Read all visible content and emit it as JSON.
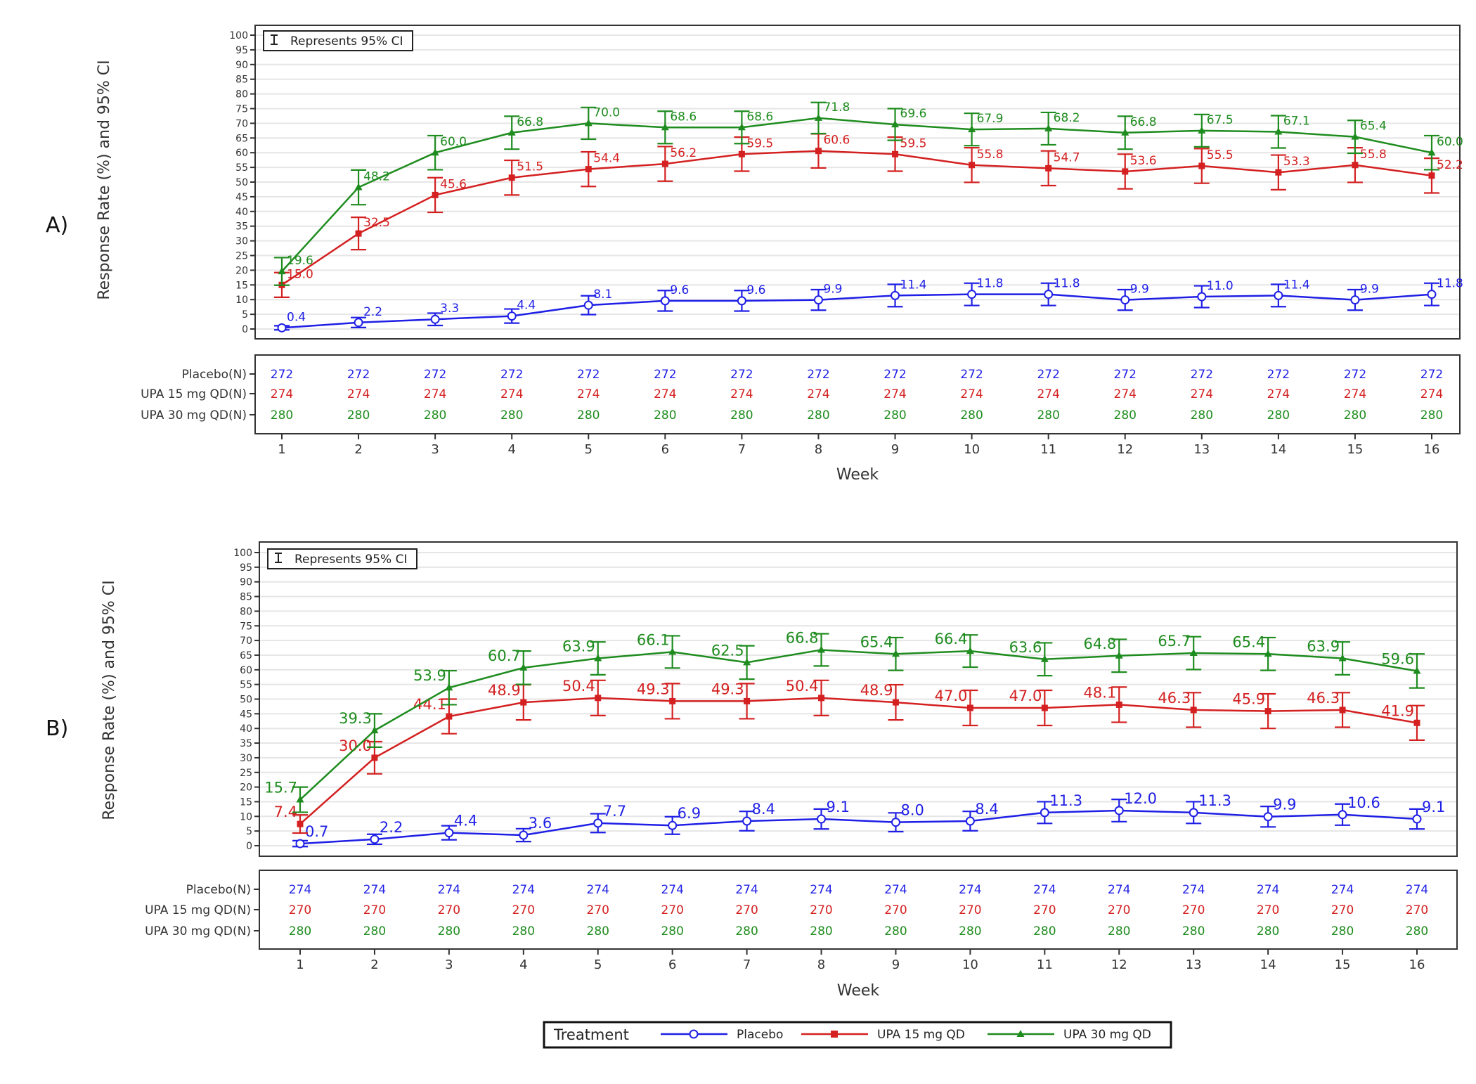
{
  "colors": {
    "Placebo": "#1f1fe6",
    "UPA 15 mg QD": "#d42020",
    "UPA 30 mg QD": "#1e8c1e",
    "axis": "#333333",
    "grid": "#e6e6e6"
  },
  "ci_note": "Represents 95% CI",
  "legend": {
    "title": "Treatment",
    "position": "bottom",
    "items": [
      "Placebo",
      "UPA 15 mg QD",
      "UPA 30 mg QD"
    ]
  },
  "chart_data": [
    {
      "panel": "A)",
      "type": "line",
      "ylabel": "Response Rate (%) and 95% CI",
      "xlabel": "Week",
      "ylim": [
        0,
        100
      ],
      "yticks": [
        0,
        5,
        10,
        15,
        20,
        25,
        30,
        35,
        40,
        45,
        50,
        55,
        60,
        65,
        70,
        75,
        80,
        85,
        90,
        95,
        100
      ],
      "grid": true,
      "x": [
        1,
        2,
        3,
        4,
        5,
        6,
        7,
        8,
        9,
        10,
        11,
        12,
        13,
        14,
        15,
        16
      ],
      "series": [
        {
          "name": "Placebo",
          "marker": "circle",
          "values": [
            0.4,
            2.2,
            3.3,
            4.4,
            8.1,
            9.6,
            9.6,
            9.9,
            11.4,
            11.8,
            11.8,
            9.9,
            11.0,
            11.4,
            9.9,
            11.8
          ],
          "ci_halfwidth": [
            0.7,
            1.7,
            2.1,
            2.4,
            3.2,
            3.5,
            3.5,
            3.5,
            3.8,
            3.8,
            3.8,
            3.5,
            3.7,
            3.8,
            3.5,
            3.8
          ],
          "n_label": "Placebo(N)",
          "n": [
            272,
            272,
            272,
            272,
            272,
            272,
            272,
            272,
            272,
            272,
            272,
            272,
            272,
            272,
            272,
            272
          ]
        },
        {
          "name": "UPA 15 mg QD",
          "marker": "square",
          "values": [
            15.0,
            32.5,
            45.6,
            51.5,
            54.4,
            56.2,
            59.5,
            60.6,
            59.5,
            55.8,
            54.7,
            53.6,
            55.5,
            53.3,
            55.8,
            52.2
          ],
          "ci_halfwidth": [
            4.2,
            5.5,
            5.9,
            5.9,
            5.9,
            5.9,
            5.8,
            5.8,
            5.8,
            5.9,
            5.9,
            5.9,
            5.9,
            5.9,
            5.9,
            5.9
          ],
          "n_label": "UPA 15 mg QD(N)",
          "n": [
            274,
            274,
            274,
            274,
            274,
            274,
            274,
            274,
            274,
            274,
            274,
            274,
            274,
            274,
            274,
            274
          ]
        },
        {
          "name": "UPA 30 mg QD",
          "marker": "triangle",
          "values": [
            19.6,
            48.2,
            60.0,
            66.8,
            70.0,
            68.6,
            68.6,
            71.8,
            69.6,
            67.9,
            68.2,
            66.8,
            67.5,
            67.1,
            65.4,
            60.0
          ],
          "ci_halfwidth": [
            4.7,
            5.9,
            5.8,
            5.6,
            5.4,
            5.5,
            5.5,
            5.3,
            5.4,
            5.5,
            5.5,
            5.6,
            5.5,
            5.5,
            5.6,
            5.8
          ],
          "n_label": "UPA 30 mg QD(N)",
          "n": [
            280,
            280,
            280,
            280,
            280,
            280,
            280,
            280,
            280,
            280,
            280,
            280,
            280,
            280,
            280,
            280
          ]
        }
      ]
    },
    {
      "panel": "B)",
      "type": "line",
      "ylabel": "Response Rate (%) and 95% CI",
      "xlabel": "Week",
      "ylim": [
        0,
        100
      ],
      "yticks": [
        0,
        5,
        10,
        15,
        20,
        25,
        30,
        35,
        40,
        45,
        50,
        55,
        60,
        65,
        70,
        75,
        80,
        85,
        90,
        95,
        100
      ],
      "grid": true,
      "x": [
        1,
        2,
        3,
        4,
        5,
        6,
        7,
        8,
        9,
        10,
        11,
        12,
        13,
        14,
        15,
        16
      ],
      "series": [
        {
          "name": "Placebo",
          "marker": "circle",
          "values": [
            0.7,
            2.2,
            4.4,
            3.6,
            7.7,
            6.9,
            8.4,
            9.1,
            8.0,
            8.4,
            11.3,
            12.0,
            11.3,
            9.9,
            10.6,
            9.1
          ],
          "ci_halfwidth": [
            1.0,
            1.7,
            2.4,
            2.2,
            3.2,
            3.0,
            3.3,
            3.4,
            3.2,
            3.3,
            3.7,
            3.8,
            3.7,
            3.5,
            3.6,
            3.4
          ],
          "n_label": "Placebo(N)",
          "n": [
            274,
            274,
            274,
            274,
            274,
            274,
            274,
            274,
            274,
            274,
            274,
            274,
            274,
            274,
            274,
            274
          ]
        },
        {
          "name": "UPA 15 mg QD",
          "marker": "square",
          "values": [
            7.4,
            30.0,
            44.1,
            48.9,
            50.4,
            49.3,
            49.3,
            50.4,
            48.9,
            47.0,
            47.0,
            48.1,
            46.3,
            45.9,
            46.3,
            41.9
          ],
          "ci_halfwidth": [
            3.1,
            5.5,
            5.9,
            6.0,
            6.0,
            6.0,
            6.0,
            6.0,
            6.0,
            6.0,
            6.0,
            6.0,
            5.9,
            5.9,
            5.9,
            5.9
          ],
          "n_label": "UPA 15 mg QD(N)",
          "n": [
            270,
            270,
            270,
            270,
            270,
            270,
            270,
            270,
            270,
            270,
            270,
            270,
            270,
            270,
            270,
            270
          ]
        },
        {
          "name": "UPA 30 mg QD",
          "marker": "triangle",
          "values": [
            15.7,
            39.3,
            53.9,
            60.7,
            63.9,
            66.1,
            62.5,
            66.8,
            65.4,
            66.4,
            63.6,
            64.8,
            65.7,
            65.4,
            63.9,
            59.6
          ],
          "ci_halfwidth": [
            4.3,
            5.7,
            5.8,
            5.7,
            5.6,
            5.5,
            5.7,
            5.5,
            5.6,
            5.5,
            5.6,
            5.6,
            5.6,
            5.6,
            5.6,
            5.8
          ],
          "n_label": "UPA 30 mg QD(N)",
          "n": [
            280,
            280,
            280,
            280,
            280,
            280,
            280,
            280,
            280,
            280,
            280,
            280,
            280,
            280,
            280,
            280
          ]
        }
      ]
    }
  ]
}
